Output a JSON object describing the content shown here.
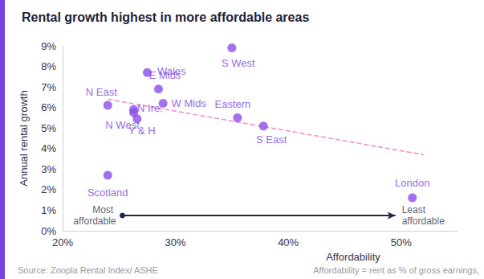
{
  "chart_data": {
    "type": "scatter",
    "title": "Rental growth highest in more affordable areas",
    "x_label": "Affordability",
    "y_label": "Annual rental growth",
    "source": "Source: Zoopla Rental Index/ ASHE",
    "note": "Affordability = rent as % of gross earnings,",
    "color": "#8b4fe8",
    "points": {
      "labels": [
        "N East",
        "N Ire.",
        "N West",
        "Y & H",
        "Wales",
        "E Mids",
        "W Mids",
        "S West",
        "Eastern",
        "S East",
        "Scotland",
        "London"
      ],
      "x": [
        24.0,
        26.3,
        26.3,
        26.6,
        27.5,
        28.5,
        28.9,
        35.0,
        35.5,
        37.8,
        24.0,
        51.0
      ],
      "y": [
        6.1,
        5.9,
        5.75,
        5.45,
        7.7,
        6.9,
        6.2,
        8.9,
        5.5,
        5.1,
        2.7,
        1.6
      ]
    },
    "trend": {
      "x": [
        24,
        52
      ],
      "y": [
        6.4,
        3.7
      ],
      "color": "#f28ccf",
      "line_style": "dashed"
    },
    "annotations": [
      {
        "text": "Most affordable",
        "x": 25.3,
        "y": 0.74
      },
      {
        "text": "Least affordable",
        "x": 49.5,
        "y": 0.74
      }
    ],
    "xlim": [
      20,
      55
    ],
    "xticks": [
      {
        "value": 20,
        "label": "20%"
      },
      {
        "value": 30,
        "label": "30%"
      },
      {
        "value": 40,
        "label": "40%"
      },
      {
        "value": 50,
        "label": "50%"
      }
    ],
    "ylim": [
      0,
      9
    ],
    "yticks": [
      {
        "value": 0,
        "label": "0%"
      },
      {
        "value": 1,
        "label": "1%"
      },
      {
        "value": 2,
        "label": "2%"
      },
      {
        "value": 3,
        "label": "3%"
      },
      {
        "value": 4,
        "label": "4%"
      },
      {
        "value": 5,
        "label": "5%"
      },
      {
        "value": 6,
        "label": "6%"
      },
      {
        "value": 7,
        "label": "7%"
      },
      {
        "value": 8,
        "label": "8%"
      },
      {
        "value": 9,
        "label": "9%"
      }
    ],
    "grid": false
  }
}
